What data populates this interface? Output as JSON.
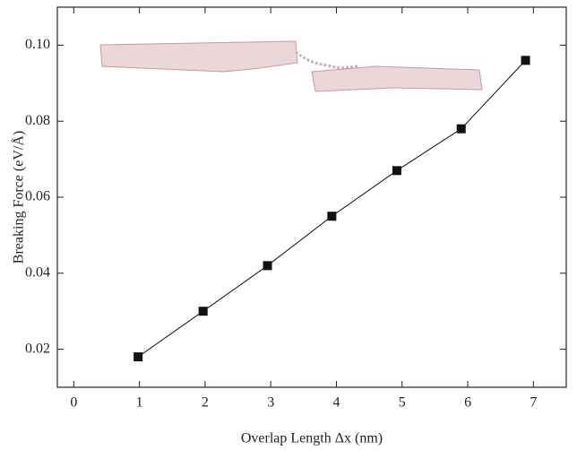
{
  "chart_data": {
    "type": "line",
    "x_label": "Overlap Length Δx (nm)",
    "y_label": "Breaking Force (eV/Å)",
    "x": [
      0.98,
      1.97,
      2.95,
      3.93,
      4.92,
      5.9,
      6.88
    ],
    "values": [
      0.018,
      0.03,
      0.042,
      0.055,
      0.067,
      0.078,
      0.096
    ],
    "color": "#111111",
    "xlim": [
      -0.25,
      7.5
    ],
    "xticks": [
      0,
      1,
      2,
      3,
      4,
      5,
      6,
      7
    ],
    "ylim": [
      0.01,
      0.11
    ],
    "yticks": [
      0.02,
      0.04,
      0.06,
      0.08,
      {
        "value": 0.1,
        "label": "0.10"
      }
    ],
    "grid": false
  }
}
